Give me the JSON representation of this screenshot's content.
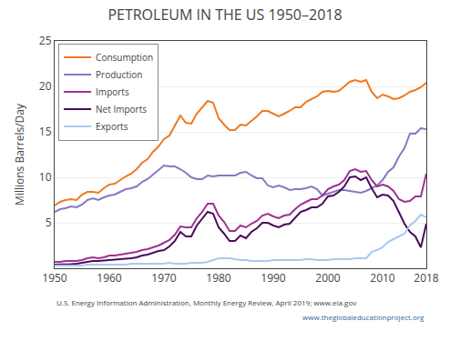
{
  "chart_data": {
    "type": "line",
    "title": "PETROLEUM IN THE US 1950–2018",
    "y_label": "Millions Barrels/Day",
    "annotations": [
      "U.S. Energy Information Administration, Monthly Energy Review, April 2019; www.eia.gov",
      "www.theglobaleducationproject.org"
    ],
    "x": [
      1950,
      1951,
      1952,
      1953,
      1954,
      1955,
      1956,
      1957,
      1958,
      1959,
      1960,
      1961,
      1962,
      1963,
      1964,
      1965,
      1966,
      1967,
      1968,
      1969,
      1970,
      1971,
      1972,
      1973,
      1974,
      1975,
      1976,
      1977,
      1978,
      1979,
      1980,
      1981,
      1982,
      1983,
      1984,
      1985,
      1986,
      1987,
      1988,
      1989,
      1990,
      1991,
      1992,
      1993,
      1994,
      1995,
      1996,
      1997,
      1998,
      1999,
      2000,
      2001,
      2002,
      2003,
      2004,
      2005,
      2006,
      2007,
      2008,
      2009,
      2010,
      2011,
      2012,
      2013,
      2014,
      2015,
      2016,
      2017,
      2018
    ],
    "series": [
      {
        "name": "Consumption",
        "color": "#f07820",
        "values": [
          6.9,
          7.3,
          7.5,
          7.6,
          7.5,
          8.1,
          8.4,
          8.4,
          8.3,
          8.8,
          9.2,
          9.3,
          9.7,
          10.1,
          10.4,
          10.9,
          11.6,
          12.0,
          12.8,
          13.4,
          14.2,
          14.6,
          15.7,
          16.8,
          16.0,
          15.9,
          17.0,
          17.7,
          18.4,
          18.2,
          16.5,
          15.8,
          15.2,
          15.2,
          15.8,
          15.7,
          16.2,
          16.7,
          17.3,
          17.3,
          17.0,
          16.7,
          17.0,
          17.3,
          17.7,
          17.7,
          18.3,
          18.6,
          18.9,
          19.4,
          19.5,
          19.4,
          19.5,
          20.0,
          20.5,
          20.7,
          20.5,
          20.7,
          19.4,
          18.7,
          19.1,
          18.9,
          18.6,
          18.7,
          19.0,
          19.4,
          19.6,
          19.9,
          20.4
        ]
      },
      {
        "name": "Production",
        "color": "#8878c0",
        "values": [
          6.2,
          6.5,
          6.6,
          6.8,
          6.7,
          7.0,
          7.5,
          7.7,
          7.5,
          7.8,
          8.0,
          8.1,
          8.4,
          8.7,
          8.8,
          9.0,
          9.5,
          9.8,
          10.3,
          10.8,
          11.3,
          11.2,
          11.2,
          10.9,
          10.5,
          10.0,
          9.8,
          9.8,
          10.2,
          10.1,
          10.2,
          10.2,
          10.2,
          10.2,
          10.5,
          10.6,
          10.2,
          9.9,
          9.9,
          9.1,
          8.9,
          9.1,
          8.9,
          8.6,
          8.7,
          8.7,
          8.8,
          9.0,
          8.7,
          8.0,
          8.2,
          8.4,
          8.6,
          8.6,
          8.5,
          8.4,
          8.3,
          8.5,
          8.8,
          9.1,
          9.7,
          10.6,
          11.1,
          12.3,
          13.2,
          14.8,
          14.8,
          15.4,
          15.3
        ]
      },
      {
        "name": "Imports",
        "color": "#a03090",
        "values": [
          0.7,
          0.7,
          0.8,
          0.8,
          0.8,
          0.9,
          1.1,
          1.2,
          1.1,
          1.2,
          1.4,
          1.4,
          1.5,
          1.6,
          1.7,
          1.8,
          2.0,
          2.1,
          2.3,
          2.5,
          2.8,
          3.1,
          3.7,
          4.6,
          4.5,
          4.5,
          5.5,
          6.2,
          7.1,
          7.1,
          5.8,
          5.1,
          4.1,
          4.1,
          4.7,
          4.5,
          4.9,
          5.2,
          5.8,
          6.0,
          5.7,
          5.5,
          5.8,
          5.9,
          6.5,
          7.0,
          7.3,
          7.6,
          7.6,
          8.0,
          8.7,
          9.0,
          9.2,
          9.7,
          10.7,
          10.9,
          10.6,
          10.7,
          9.7,
          9.0,
          9.2,
          9.0,
          8.5,
          7.6,
          7.3,
          7.4,
          7.9,
          7.9,
          10.4
        ]
      },
      {
        "name": "Net Imports",
        "color": "#4a0a5a",
        "values": [
          0.4,
          0.4,
          0.45,
          0.45,
          0.5,
          0.6,
          0.7,
          0.8,
          0.8,
          0.85,
          0.9,
          0.9,
          0.95,
          1.0,
          1.1,
          1.2,
          1.4,
          1.5,
          1.7,
          1.9,
          2.0,
          2.4,
          3.0,
          4.0,
          3.5,
          3.5,
          4.7,
          5.4,
          6.2,
          6.0,
          4.5,
          3.8,
          3.0,
          3.0,
          3.6,
          3.3,
          4.0,
          4.4,
          5.0,
          5.0,
          4.7,
          4.5,
          4.8,
          4.9,
          5.6,
          6.2,
          6.4,
          6.7,
          6.7,
          7.1,
          7.9,
          8.0,
          8.4,
          9.0,
          10.0,
          10.1,
          9.7,
          10.0,
          8.8,
          7.8,
          8.1,
          8.0,
          7.4,
          6.2,
          4.9,
          4.0,
          3.5,
          2.3,
          4.9
        ]
      },
      {
        "name": "Exports",
        "color": "#aac8f0",
        "values": [
          0.3,
          0.3,
          0.3,
          0.3,
          0.3,
          0.3,
          0.4,
          0.4,
          0.4,
          0.4,
          0.4,
          0.4,
          0.4,
          0.4,
          0.5,
          0.5,
          0.5,
          0.5,
          0.5,
          0.5,
          0.5,
          0.6,
          0.5,
          0.5,
          0.5,
          0.6,
          0.6,
          0.6,
          0.7,
          0.9,
          1.1,
          1.1,
          1.1,
          1.0,
          0.9,
          0.9,
          0.8,
          0.8,
          0.8,
          0.8,
          0.9,
          0.9,
          0.9,
          0.9,
          0.9,
          0.9,
          1.0,
          1.0,
          0.9,
          0.9,
          0.9,
          1.0,
          1.0,
          1.0,
          1.0,
          1.1,
          1.1,
          1.1,
          1.8,
          2.0,
          2.3,
          2.9,
          3.2,
          3.5,
          3.8,
          4.7,
          5.2,
          5.9,
          5.6
        ]
      }
    ],
    "xlim": [
      1950,
      2018
    ],
    "xticks": [
      1950,
      1960,
      1970,
      1980,
      1990,
      2000,
      2010,
      2018
    ],
    "ylim": [
      0,
      25
    ],
    "yticks": [
      5,
      10,
      15,
      20,
      25
    ],
    "grid": "y",
    "legend": "upper left"
  }
}
